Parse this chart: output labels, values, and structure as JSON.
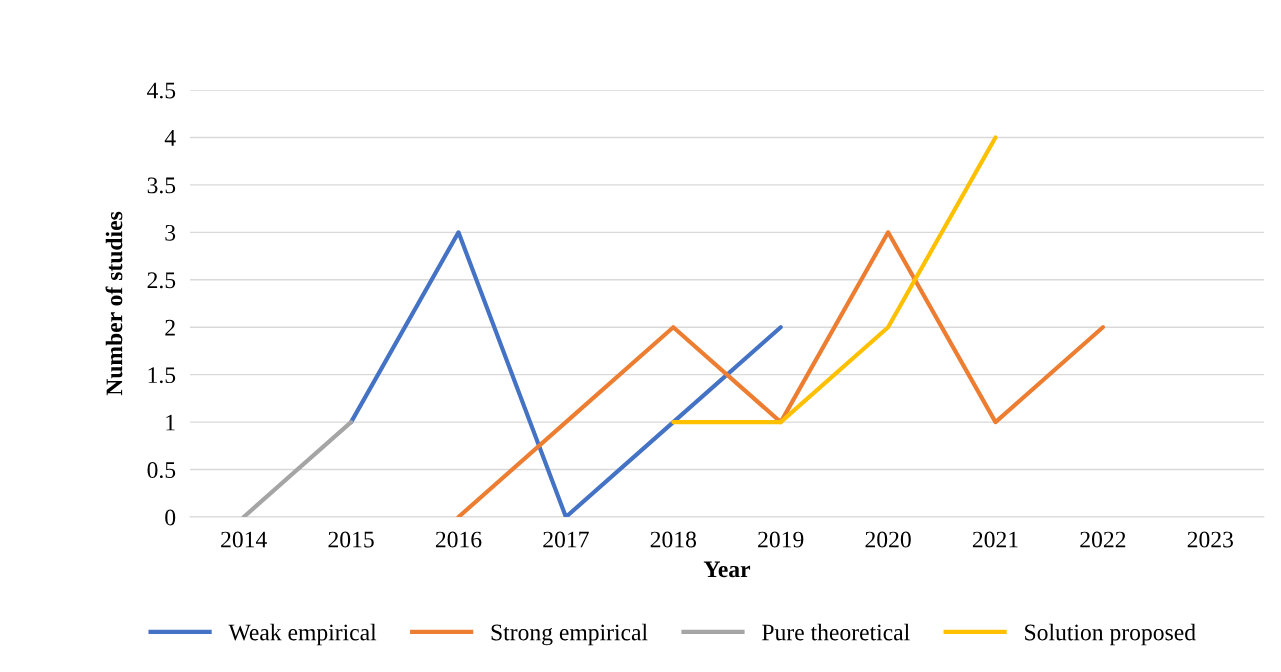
{
  "chart_data": {
    "type": "line",
    "xlabel": "Year",
    "ylabel": "Number of studies",
    "categories": [
      "2014",
      "2015",
      "2016",
      "2017",
      "2018",
      "2019",
      "2020",
      "2021",
      "2022",
      "2023"
    ],
    "series": [
      {
        "name": "Weak empirical",
        "color": "#4472c4",
        "values": [
          null,
          1,
          3,
          0,
          1,
          2,
          null,
          null,
          null,
          null
        ]
      },
      {
        "name": "Strong empirical",
        "color": "#ed7d31",
        "values": [
          null,
          null,
          0,
          1,
          2,
          1,
          3,
          1,
          2,
          null
        ]
      },
      {
        "name": "Pure theoretical",
        "color": "#a5a5a5",
        "values": [
          0,
          1,
          null,
          null,
          null,
          null,
          null,
          null,
          null,
          null
        ]
      },
      {
        "name": "Solution proposed",
        "color": "#ffc000",
        "values": [
          null,
          null,
          null,
          null,
          1,
          1,
          2,
          4,
          null,
          null
        ]
      }
    ],
    "ylim": [
      0,
      4.5
    ],
    "yticks": [
      0,
      0.5,
      1,
      1.5,
      2,
      2.5,
      3,
      3.5,
      4,
      4.5
    ],
    "grid": "y",
    "legend": "bottom",
    "marker": "none",
    "line_style": "solid"
  }
}
